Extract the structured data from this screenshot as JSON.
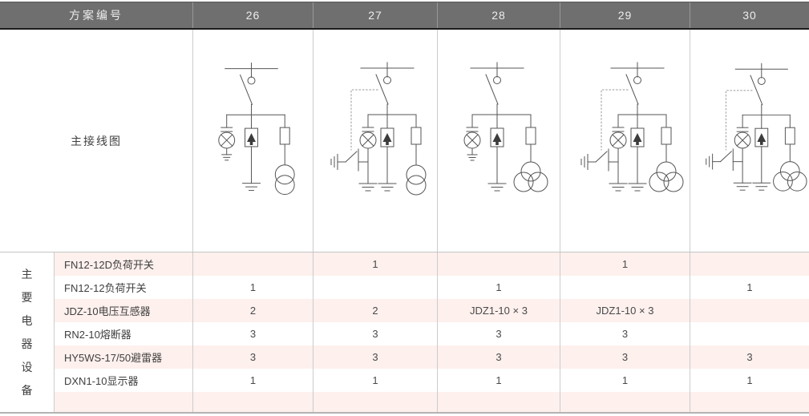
{
  "header": {
    "label": "方案编号",
    "schemes": [
      "26",
      "27",
      "28",
      "29",
      "30"
    ]
  },
  "diagram_section": {
    "label": "主接线图",
    "diagrams": [
      {
        "scheme": "26",
        "earth_switch": false,
        "transformer": "two-winding"
      },
      {
        "scheme": "27",
        "earth_switch": true,
        "transformer": "two-winding"
      },
      {
        "scheme": "28",
        "earth_switch": false,
        "transformer": "three-winding"
      },
      {
        "scheme": "29",
        "earth_switch": true,
        "transformer": "three-winding"
      },
      {
        "scheme": "30",
        "earth_switch": true,
        "transformer": "three-winding"
      }
    ],
    "symbols": [
      "busbar",
      "load-break-switch",
      "indicator-lamp",
      "surge-arrester",
      "fuse",
      "voltage-transformer",
      "earthing-switch",
      "ground"
    ]
  },
  "equipment_section": {
    "group_label": "主要电器设备",
    "rows": [
      {
        "name": "FN12-12D负荷开关",
        "values": [
          "",
          "1",
          "",
          "1",
          ""
        ]
      },
      {
        "name": "FN12-12负荷开关",
        "values": [
          "1",
          "",
          "1",
          "",
          "1"
        ]
      },
      {
        "name": "JDZ-10电压互感器",
        "values": [
          "2",
          "2",
          "JDZ1-10 × 3",
          "JDZ1-10 × 3",
          ""
        ]
      },
      {
        "name": "RN2-10熔断器",
        "values": [
          "3",
          "3",
          "3",
          "3",
          ""
        ]
      },
      {
        "name": "HY5WS-17/50避雷器",
        "values": [
          "3",
          "3",
          "3",
          "3",
          "3"
        ]
      },
      {
        "name": "DXN1-10显示器",
        "values": [
          "1",
          "1",
          "1",
          "1",
          "1"
        ]
      },
      {
        "name": "",
        "values": [
          "",
          "",
          "",
          "",
          ""
        ]
      }
    ]
  },
  "colors": {
    "header_bg": "#6f6f6f",
    "header_text": "#ededed",
    "header_border_bottom": "#1c1c1c",
    "row_stripe": "#fdf0ed",
    "grid_line": "#cccccc",
    "diagram_stroke": "#555555",
    "text": "#3f3f3f"
  }
}
